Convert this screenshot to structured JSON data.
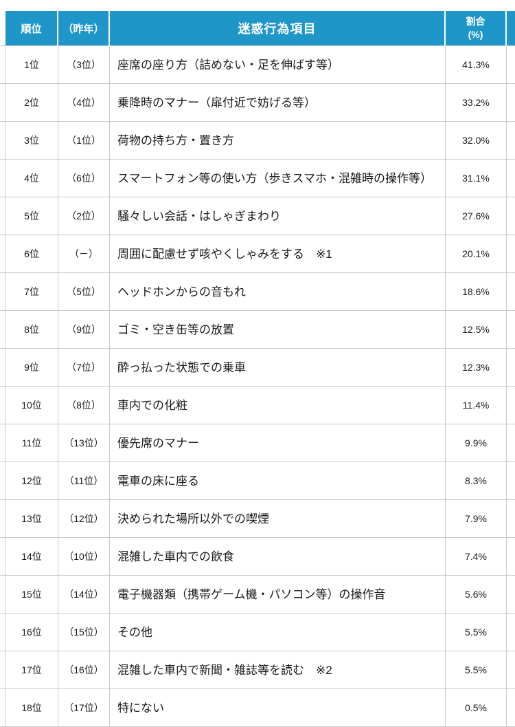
{
  "table": {
    "headers": {
      "rank": "順位",
      "last_year": "（昨年）",
      "item": "迷惑行為項目",
      "ratio_line1": "割合",
      "ratio_line2": "(%)"
    },
    "rows": [
      {
        "rank": "1位",
        "last_year": "（3位）",
        "item": "座席の座り方（詰めない・足を伸ばす等）",
        "ratio": "41.3%"
      },
      {
        "rank": "2位",
        "last_year": "（4位）",
        "item": "乗降時のマナー（扉付近で妨げる等）",
        "ratio": "33.2%"
      },
      {
        "rank": "3位",
        "last_year": "（1位）",
        "item": "荷物の持ち方・置き方",
        "ratio": "32.0%"
      },
      {
        "rank": "4位",
        "last_year": "（6位）",
        "item": "スマートフォン等の使い方（歩きスマホ・混雑時の操作等）",
        "ratio": "31.1%"
      },
      {
        "rank": "5位",
        "last_year": "（2位）",
        "item": "騒々しい会話・はしゃぎまわり",
        "ratio": "27.6%"
      },
      {
        "rank": "6位",
        "last_year": "（－）",
        "item": "周囲に配慮せず咳やくしゃみをする　※1",
        "ratio": "20.1%"
      },
      {
        "rank": "7位",
        "last_year": "（5位）",
        "item": "ヘッドホンからの音もれ",
        "ratio": "18.6%"
      },
      {
        "rank": "8位",
        "last_year": "（9位）",
        "item": "ゴミ・空き缶等の放置",
        "ratio": "12.5%"
      },
      {
        "rank": "9位",
        "last_year": "（7位）",
        "item": "酔っ払った状態での乗車",
        "ratio": "12.3%"
      },
      {
        "rank": "10位",
        "last_year": "（8位）",
        "item": "車内での化粧",
        "ratio": "11.4%"
      },
      {
        "rank": "11位",
        "last_year": "（13位）",
        "item": "優先席のマナー",
        "ratio": "9.9%"
      },
      {
        "rank": "12位",
        "last_year": "（11位）",
        "item": "電車の床に座る",
        "ratio": "8.3%"
      },
      {
        "rank": "13位",
        "last_year": "（12位）",
        "item": "決められた場所以外での喫煙",
        "ratio": "7.9%"
      },
      {
        "rank": "14位",
        "last_year": "（10位）",
        "item": "混雑した車内での飲食",
        "ratio": "7.4%"
      },
      {
        "rank": "15位",
        "last_year": "（14位）",
        "item": "電子機器類（携帯ゲーム機・パソコン等）の操作音",
        "ratio": "5.6%"
      },
      {
        "rank": "16位",
        "last_year": "（15位）",
        "item": "その他",
        "ratio": "5.5%"
      },
      {
        "rank": "17位",
        "last_year": "（16位）",
        "item": "混雑した車内で新聞・雑誌等を読む　※2",
        "ratio": "5.5%"
      },
      {
        "rank": "18位",
        "last_year": "（17位）",
        "item": "特にない",
        "ratio": "0.5%"
      }
    ],
    "colors": {
      "header_bg": "#1f96c8",
      "header_text": "#ffffff",
      "body_text": "#1a1a1a",
      "grid": "#c6c9cb"
    }
  }
}
